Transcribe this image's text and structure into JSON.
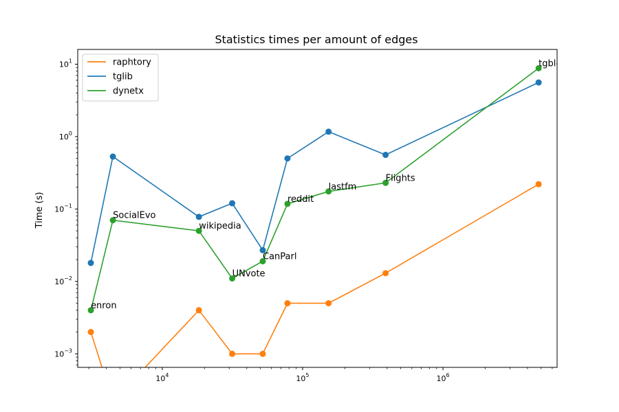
{
  "chart_data": {
    "type": "line",
    "title": "Statistics times per amount of edges",
    "xlabel": "",
    "ylabel": "Time (s)",
    "x_scale": "log",
    "y_scale": "log",
    "xlim": [
      2500,
      6500000
    ],
    "ylim": [
      0.00065,
      16
    ],
    "grid": false,
    "legend_position": "top-left",
    "x_ticks": [
      {
        "value": 10000,
        "base": "10",
        "exp": "4"
      },
      {
        "value": 100000,
        "base": "10",
        "exp": "5"
      },
      {
        "value": 1000000,
        "base": "10",
        "exp": "6"
      }
    ],
    "y_ticks": [
      {
        "value": 0.001,
        "base": "10",
        "exp": "−3"
      },
      {
        "value": 0.01,
        "base": "10",
        "exp": "−2"
      },
      {
        "value": 0.1,
        "base": "10",
        "exp": "−1"
      },
      {
        "value": 1,
        "base": "10",
        "exp": "0"
      },
      {
        "value": 10,
        "base": "10",
        "exp": "1"
      }
    ],
    "x": [
      3100,
      4450,
      18250,
      31500,
      52000,
      78000,
      153000,
      390000,
      4800000
    ],
    "series": [
      {
        "name": "raphtory",
        "color": "#ff7f0e",
        "values": [
          0.002,
          0.0,
          0.004,
          0.001,
          0.001,
          0.005,
          0.005,
          0.013,
          0.22
        ]
      },
      {
        "name": "tglib",
        "color": "#1f77b4",
        "values": [
          0.018,
          0.53,
          0.078,
          0.12,
          0.027,
          0.5,
          1.17,
          0.56,
          5.6
        ]
      },
      {
        "name": "dynetx",
        "color": "#2ca02c",
        "values": [
          0.004,
          0.07,
          0.05,
          0.011,
          0.019,
          0.118,
          0.175,
          0.23,
          8.8
        ]
      }
    ],
    "annotations": [
      {
        "text": "enron",
        "x": 3100,
        "y": 0.004
      },
      {
        "text": "SocialEvo",
        "x": 4450,
        "y": 0.07
      },
      {
        "text": "wikipedia",
        "x": 18250,
        "y": 0.05
      },
      {
        "text": "UNvote",
        "x": 31500,
        "y": 0.011
      },
      {
        "text": "CanParl",
        "x": 52000,
        "y": 0.019
      },
      {
        "text": "reddit",
        "x": 78000,
        "y": 0.118
      },
      {
        "text": "lastfm",
        "x": 153000,
        "y": 0.175
      },
      {
        "text": "Flights",
        "x": 390000,
        "y": 0.23
      },
      {
        "text": "tgbl-review",
        "x": 4800000,
        "y": 8.8
      }
    ]
  }
}
